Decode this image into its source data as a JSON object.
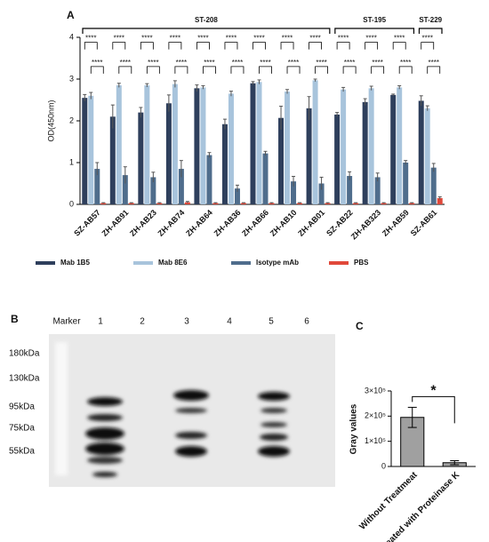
{
  "chart_data": [
    {
      "type": "bar",
      "panel": "A",
      "ylabel": "OD(450nm)",
      "categories": [
        "SZ-AB57",
        "ZH-AB91",
        "ZH-AB23",
        "ZH-AB74",
        "ZH-AB64",
        "ZH-AB36",
        "ZH-AB66",
        "ZH-AB10",
        "ZH-AB01",
        "SZ-AB22",
        "ZH-AB323",
        "ZH-AB59",
        "SZ-AB61"
      ],
      "series": [
        {
          "name": "Mab 1B5",
          "color": "#2e3f5c",
          "values": [
            2.55,
            2.1,
            2.2,
            2.42,
            2.78,
            1.92,
            2.9,
            2.07,
            2.3,
            2.15,
            2.45,
            2.62,
            2.48
          ],
          "errors": [
            0.08,
            0.28,
            0.12,
            0.2,
            0.08,
            0.12,
            0.04,
            0.28,
            0.28,
            0.05,
            0.08,
            0.02,
            0.12
          ]
        },
        {
          "name": "Mab 8E6",
          "color": "#a8c4dc",
          "values": [
            2.6,
            2.85,
            2.85,
            2.88,
            2.8,
            2.65,
            2.93,
            2.7,
            2.97,
            2.75,
            2.78,
            2.8,
            2.3
          ],
          "errors": [
            0.08,
            0.05,
            0.04,
            0.08,
            0.04,
            0.06,
            0.05,
            0.05,
            0.03,
            0.05,
            0.05,
            0.04,
            0.06
          ]
        },
        {
          "name": "Isotype mAb",
          "color": "#4f6d8c",
          "values": [
            0.85,
            0.7,
            0.65,
            0.85,
            1.18,
            0.38,
            1.22,
            0.55,
            0.5,
            0.68,
            0.65,
            1.0,
            0.88
          ],
          "errors": [
            0.15,
            0.2,
            0.12,
            0.2,
            0.06,
            0.08,
            0.05,
            0.12,
            0.15,
            0.1,
            0.1,
            0.05,
            0.1
          ]
        },
        {
          "name": "PBS",
          "color": "#e0483a",
          "values": [
            0.03,
            0.03,
            0.03,
            0.05,
            0.03,
            0.03,
            0.03,
            0.03,
            0.03,
            0.03,
            0.03,
            0.03,
            0.15
          ],
          "errors": [
            0.01,
            0.01,
            0.01,
            0.02,
            0.01,
            0.01,
            0.01,
            0.01,
            0.01,
            0.01,
            0.01,
            0.01,
            0.03
          ]
        }
      ],
      "significance": "****",
      "groups": [
        {
          "label": "ST-208",
          "start": 0,
          "end": 8
        },
        {
          "label": "ST-195",
          "start": 9,
          "end": 11
        },
        {
          "label": "ST-229",
          "start": 12,
          "end": 12
        }
      ],
      "ylim": [
        0,
        4
      ],
      "yticks": [
        0,
        1,
        2,
        3,
        4
      ],
      "legend": "bottom"
    },
    {
      "type": "bar",
      "panel": "C",
      "ylabel": "Gray values",
      "categories": [
        "Without Treatmeat",
        "Treated with Proteinase K"
      ],
      "values": [
        195000,
        15000
      ],
      "errors": [
        40000,
        8000
      ],
      "color": "#a0a0a0",
      "annotation": "*",
      "ylim": [
        0,
        300000
      ],
      "yticks": [
        0,
        {
          "value": 100000,
          "label": "1×10⁵"
        },
        {
          "value": 200000,
          "label": "2×10⁵"
        },
        {
          "value": 300000,
          "label": "3×10⁵"
        }
      ]
    }
  ],
  "blot": {
    "panel": "B",
    "lanes": [
      "Marker",
      "1",
      "2",
      "3",
      "4",
      "5",
      "6"
    ],
    "markers": [
      "180kDa",
      "130kDa",
      "95kDa",
      "75kDa",
      "55kDa"
    ]
  }
}
